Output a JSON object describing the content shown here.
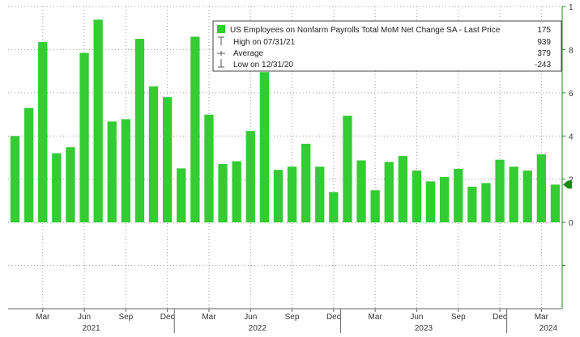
{
  "chart_data": {
    "type": "bar",
    "title": "",
    "xlabel": "",
    "ylabel": "",
    "ylim": [
      -400,
      1000
    ],
    "y_gridlines": [
      -200,
      0,
      200,
      400,
      600,
      800,
      1000
    ],
    "grid": true,
    "y_axis_side": "right",
    "y_tick_labels": [
      "0",
      "2",
      "4",
      "6",
      "8",
      "1"
    ],
    "y_tick_values": [
      0,
      200,
      400,
      600,
      800,
      1000
    ],
    "bar_color": "#33cc33",
    "last_price_marker_color": "#1a8a1a",
    "categories": [
      "2021-01",
      "2021-02",
      "2021-03",
      "2021-04",
      "2021-05",
      "2021-06",
      "2021-07",
      "2021-08",
      "2021-09",
      "2021-10",
      "2021-11",
      "2021-12",
      "2022-01",
      "2022-02",
      "2022-03",
      "2022-04",
      "2022-05",
      "2022-06",
      "2022-07",
      "2022-08",
      "2022-09",
      "2022-10",
      "2022-11",
      "2022-12",
      "2023-01",
      "2023-02",
      "2023-03",
      "2023-04",
      "2023-05",
      "2023-06",
      "2023-07",
      "2023-08",
      "2023-09",
      "2023-10",
      "2023-11",
      "2023-12",
      "2024-01",
      "2024-02",
      "2024-03",
      "2024-04"
    ],
    "values": [
      400,
      530,
      835,
      320,
      348,
      785,
      939,
      467,
      478,
      850,
      630,
      580,
      250,
      860,
      499,
      270,
      283,
      423,
      696,
      243,
      258,
      364,
      258,
      140,
      494,
      287,
      149,
      280,
      307,
      240,
      190,
      210,
      248,
      165,
      182,
      290,
      258,
      240,
      315,
      175
    ],
    "x_tick_labels": [
      {
        "label": "Mar",
        "index": 2
      },
      {
        "label": "Jun",
        "index": 5
      },
      {
        "label": "Sep",
        "index": 8
      },
      {
        "label": "Dec",
        "index": 11
      },
      {
        "label": "Mar",
        "index": 14
      },
      {
        "label": "Jun",
        "index": 17
      },
      {
        "label": "Sep",
        "index": 20
      },
      {
        "label": "Dec",
        "index": 23
      },
      {
        "label": "Mar",
        "index": 26
      },
      {
        "label": "Jun",
        "index": 29
      },
      {
        "label": "Sep",
        "index": 32
      },
      {
        "label": "Dec",
        "index": 35
      },
      {
        "label": "Mar",
        "index": 38
      }
    ],
    "year_labels": [
      {
        "label": "2021",
        "index": 5.5
      },
      {
        "label": "2022",
        "index": 17.5
      },
      {
        "label": "2023",
        "index": 29.5
      },
      {
        "label": "2024",
        "index": 38.5
      }
    ],
    "year_boundaries": [
      11.5,
      23.5,
      35.5
    ],
    "legend": {
      "placement": "top-right",
      "series_name": "US Employees on Nonfarm Payrolls Total MoM Net Change SA - Last Price",
      "last_price": "175",
      "rows": [
        {
          "label": "High on 07/31/21",
          "value": "939"
        },
        {
          "label": "Average",
          "value": "379"
        },
        {
          "label": "Low on 12/31/20",
          "value": "-243"
        }
      ]
    }
  }
}
